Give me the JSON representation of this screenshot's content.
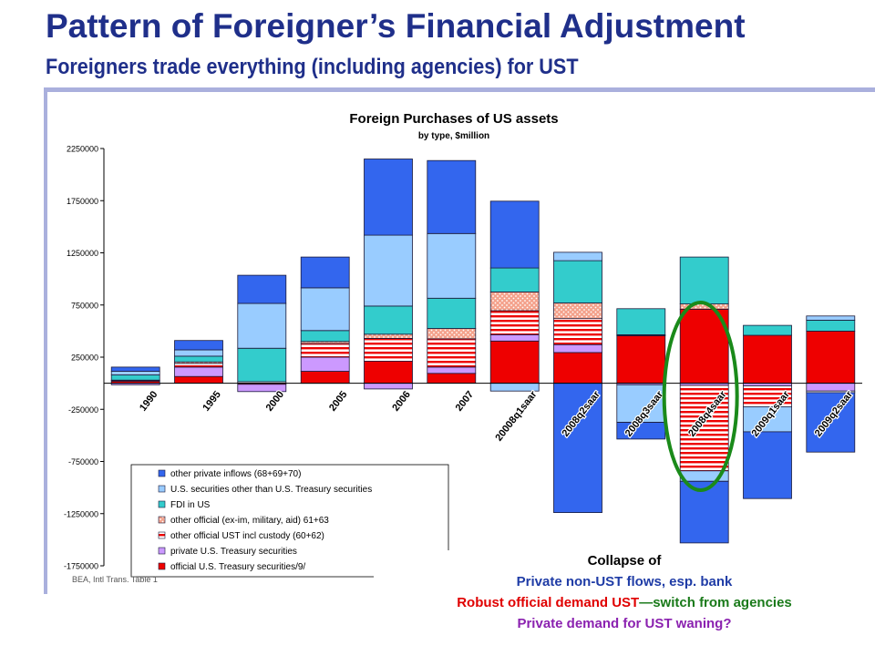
{
  "slide": {
    "title": "Pattern of Foreigner’s Financial Adjustment",
    "subtitle": "Foreigners trade everything (including agencies) for UST"
  },
  "caption": {
    "line1": "Collapse of",
    "line2": "Private non-UST flows, esp. bank",
    "line3_red": "Robust official demand UST",
    "line3_green": "—switch from agencies",
    "line4": "Private demand for UST waning?"
  },
  "colors": {
    "title": "#1f2f8a",
    "accent_blue": "#1f2f8a",
    "caption_blue": "#1f3ca6",
    "caption_red": "#e00000",
    "caption_green": "#1a7a1a",
    "caption_purple": "#8b22b0",
    "highlight_ellipse": "#1a8a1a"
  },
  "chart_data": {
    "type": "bar",
    "stacked": true,
    "title": "Foreign Purchases of US assets",
    "subtitle": "by type, $million",
    "source_note": "BEA, Intl Trans. Table 1",
    "ylim": [
      -1750000,
      2250000
    ],
    "yticks": [
      2250000,
      1750000,
      1250000,
      750000,
      250000,
      -250000,
      -750000,
      -1250000,
      -1750000
    ],
    "grid": false,
    "legend_position": "bottom-left",
    "categories": [
      "1990",
      "1995",
      "2000",
      "2005",
      "2006",
      "2007",
      "20008q1saar",
      "2008q2saar",
      "2008q3saar",
      "2008q4saar",
      "2009q1saar",
      "2009q2saar"
    ],
    "series": [
      {
        "name": "official U.S. Treasury securities/9/",
        "color": "#ee0000",
        "pattern": "solid",
        "values": [
          20000,
          65000,
          -10000,
          115000,
          210000,
          95000,
          405000,
          295000,
          455000,
          710000,
          460000,
          500000
        ]
      },
      {
        "name": "private U.S. Treasury securities",
        "color": "#cc99ff",
        "pattern": "solid",
        "values": [
          -15000,
          90000,
          -70000,
          135000,
          -55000,
          60000,
          60000,
          75000,
          -15000,
          -20000,
          -25000,
          -75000
        ]
      },
      {
        "name": "other official UST incl custody (60+62)",
        "color": "#ee0000",
        "pattern": "hstripe",
        "values": [
          5000,
          35000,
          15000,
          130000,
          220000,
          270000,
          230000,
          250000,
          5000,
          -820000,
          -200000,
          -15000
        ]
      },
      {
        "name": "other official (ex-im, military, aid) 61+63",
        "color": "#f4a28c",
        "pattern": "dots",
        "values": [
          5000,
          15000,
          0,
          20000,
          40000,
          100000,
          180000,
          150000,
          5000,
          50000,
          0,
          0
        ]
      },
      {
        "name": "FDI in US",
        "color": "#33cccc",
        "pattern": "solid",
        "values": [
          50000,
          55000,
          320000,
          105000,
          270000,
          290000,
          230000,
          405000,
          250000,
          450000,
          95000,
          105000
        ]
      },
      {
        "name": "U.S. securities other than U.S. Treasury securities",
        "color": "#99ccff",
        "pattern": "solid",
        "values": [
          35000,
          60000,
          430000,
          410000,
          680000,
          620000,
          -75000,
          80000,
          -360000,
          -100000,
          -240000,
          40000
        ]
      },
      {
        "name": "other private inflows (68+69+70)",
        "color": "#3366ee",
        "pattern": "solid",
        "values": [
          40000,
          90000,
          270000,
          295000,
          730000,
          700000,
          640000,
          -1240000,
          -160000,
          -590000,
          -640000,
          -570000
        ]
      }
    ]
  }
}
